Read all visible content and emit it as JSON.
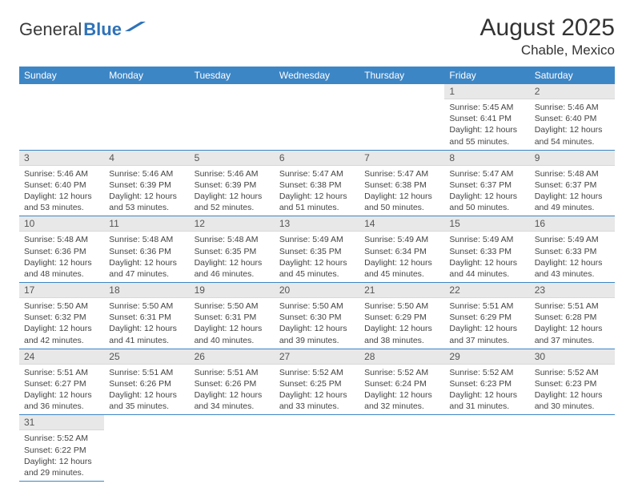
{
  "logo": {
    "text1": "General",
    "text2": "Blue"
  },
  "title": "August 2025",
  "location": "Chable, Mexico",
  "colors": {
    "header_bg": "#3d86c6",
    "header_text": "#ffffff",
    "daynum_bg": "#e8e8e8",
    "row_border": "#3d86c6"
  },
  "day_labels": [
    "Sunday",
    "Monday",
    "Tuesday",
    "Wednesday",
    "Thursday",
    "Friday",
    "Saturday"
  ],
  "first_weekday": 5,
  "days_in_month": 31,
  "days": {
    "1": {
      "sunrise": "5:45 AM",
      "sunset": "6:41 PM",
      "daylight": "12 hours and 55 minutes."
    },
    "2": {
      "sunrise": "5:46 AM",
      "sunset": "6:40 PM",
      "daylight": "12 hours and 54 minutes."
    },
    "3": {
      "sunrise": "5:46 AM",
      "sunset": "6:40 PM",
      "daylight": "12 hours and 53 minutes."
    },
    "4": {
      "sunrise": "5:46 AM",
      "sunset": "6:39 PM",
      "daylight": "12 hours and 53 minutes."
    },
    "5": {
      "sunrise": "5:46 AM",
      "sunset": "6:39 PM",
      "daylight": "12 hours and 52 minutes."
    },
    "6": {
      "sunrise": "5:47 AM",
      "sunset": "6:38 PM",
      "daylight": "12 hours and 51 minutes."
    },
    "7": {
      "sunrise": "5:47 AM",
      "sunset": "6:38 PM",
      "daylight": "12 hours and 50 minutes."
    },
    "8": {
      "sunrise": "5:47 AM",
      "sunset": "6:37 PM",
      "daylight": "12 hours and 50 minutes."
    },
    "9": {
      "sunrise": "5:48 AM",
      "sunset": "6:37 PM",
      "daylight": "12 hours and 49 minutes."
    },
    "10": {
      "sunrise": "5:48 AM",
      "sunset": "6:36 PM",
      "daylight": "12 hours and 48 minutes."
    },
    "11": {
      "sunrise": "5:48 AM",
      "sunset": "6:36 PM",
      "daylight": "12 hours and 47 minutes."
    },
    "12": {
      "sunrise": "5:48 AM",
      "sunset": "6:35 PM",
      "daylight": "12 hours and 46 minutes."
    },
    "13": {
      "sunrise": "5:49 AM",
      "sunset": "6:35 PM",
      "daylight": "12 hours and 45 minutes."
    },
    "14": {
      "sunrise": "5:49 AM",
      "sunset": "6:34 PM",
      "daylight": "12 hours and 45 minutes."
    },
    "15": {
      "sunrise": "5:49 AM",
      "sunset": "6:33 PM",
      "daylight": "12 hours and 44 minutes."
    },
    "16": {
      "sunrise": "5:49 AM",
      "sunset": "6:33 PM",
      "daylight": "12 hours and 43 minutes."
    },
    "17": {
      "sunrise": "5:50 AM",
      "sunset": "6:32 PM",
      "daylight": "12 hours and 42 minutes."
    },
    "18": {
      "sunrise": "5:50 AM",
      "sunset": "6:31 PM",
      "daylight": "12 hours and 41 minutes."
    },
    "19": {
      "sunrise": "5:50 AM",
      "sunset": "6:31 PM",
      "daylight": "12 hours and 40 minutes."
    },
    "20": {
      "sunrise": "5:50 AM",
      "sunset": "6:30 PM",
      "daylight": "12 hours and 39 minutes."
    },
    "21": {
      "sunrise": "5:50 AM",
      "sunset": "6:29 PM",
      "daylight": "12 hours and 38 minutes."
    },
    "22": {
      "sunrise": "5:51 AM",
      "sunset": "6:29 PM",
      "daylight": "12 hours and 37 minutes."
    },
    "23": {
      "sunrise": "5:51 AM",
      "sunset": "6:28 PM",
      "daylight": "12 hours and 37 minutes."
    },
    "24": {
      "sunrise": "5:51 AM",
      "sunset": "6:27 PM",
      "daylight": "12 hours and 36 minutes."
    },
    "25": {
      "sunrise": "5:51 AM",
      "sunset": "6:26 PM",
      "daylight": "12 hours and 35 minutes."
    },
    "26": {
      "sunrise": "5:51 AM",
      "sunset": "6:26 PM",
      "daylight": "12 hours and 34 minutes."
    },
    "27": {
      "sunrise": "5:52 AM",
      "sunset": "6:25 PM",
      "daylight": "12 hours and 33 minutes."
    },
    "28": {
      "sunrise": "5:52 AM",
      "sunset": "6:24 PM",
      "daylight": "12 hours and 32 minutes."
    },
    "29": {
      "sunrise": "5:52 AM",
      "sunset": "6:23 PM",
      "daylight": "12 hours and 31 minutes."
    },
    "30": {
      "sunrise": "5:52 AM",
      "sunset": "6:23 PM",
      "daylight": "12 hours and 30 minutes."
    },
    "31": {
      "sunrise": "5:52 AM",
      "sunset": "6:22 PM",
      "daylight": "12 hours and 29 minutes."
    }
  },
  "labels": {
    "sunrise": "Sunrise:",
    "sunset": "Sunset:",
    "daylight": "Daylight:"
  }
}
